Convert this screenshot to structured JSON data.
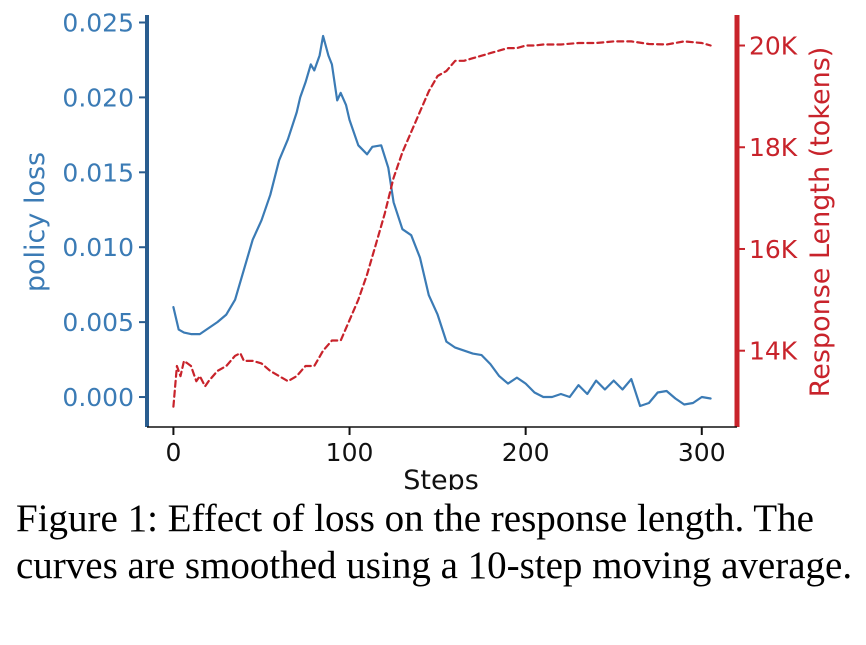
{
  "figure": {
    "caption": "Figure 1: Effect of loss on the response length. The curves are smoothed using a 10-step moving average."
  },
  "colors": {
    "policy_loss": "#3b7bb5",
    "response_length": "#c8232b",
    "text": "#111111"
  },
  "chart_data": {
    "type": "line",
    "title": "",
    "xlabel": "Steps",
    "ylabel_left": "policy loss",
    "ylabel_right": "Response Length (tokens)",
    "xlim": [
      -15,
      320
    ],
    "ylim_left": [
      -0.002,
      0.0255
    ],
    "ylim_right": [
      12500,
      20600
    ],
    "x_ticks": [
      0,
      100,
      200,
      300
    ],
    "x_tick_labels": [
      "0",
      "100",
      "200",
      "300"
    ],
    "y_left_ticks": [
      0.0,
      0.005,
      0.01,
      0.015,
      0.02,
      0.025
    ],
    "y_left_tick_labels": [
      "0.000",
      "0.005",
      "0.010",
      "0.015",
      "0.020",
      "0.025"
    ],
    "y_right_ticks": [
      14000,
      16000,
      18000,
      20000
    ],
    "y_right_tick_labels": [
      "14K",
      "16K",
      "18K",
      "20K"
    ],
    "grid": false,
    "legend": "none",
    "series": [
      {
        "name": "policy loss",
        "axis": "left",
        "style": "solid",
        "x": [
          0,
          3,
          6,
          10,
          15,
          20,
          25,
          30,
          35,
          40,
          45,
          50,
          55,
          60,
          65,
          70,
          72,
          75,
          78,
          80,
          83,
          85,
          88,
          90,
          93,
          95,
          98,
          100,
          105,
          110,
          113,
          118,
          122,
          125,
          130,
          135,
          140,
          145,
          150,
          155,
          160,
          165,
          170,
          175,
          180,
          185,
          190,
          195,
          200,
          205,
          210,
          215,
          220,
          225,
          230,
          235,
          240,
          245,
          250,
          255,
          260,
          265,
          270,
          275,
          280,
          285,
          290,
          295,
          300,
          305
        ],
        "y": [
          0.006,
          0.0045,
          0.0043,
          0.0042,
          0.0042,
          0.0046,
          0.005,
          0.0055,
          0.0065,
          0.0085,
          0.0105,
          0.0118,
          0.0135,
          0.0158,
          0.0172,
          0.019,
          0.02,
          0.021,
          0.0222,
          0.0218,
          0.0228,
          0.0241,
          0.0228,
          0.0222,
          0.0198,
          0.0203,
          0.0195,
          0.0185,
          0.0168,
          0.0162,
          0.0167,
          0.0168,
          0.0153,
          0.013,
          0.0112,
          0.0108,
          0.0093,
          0.0068,
          0.0055,
          0.0037,
          0.0033,
          0.0031,
          0.0029,
          0.0028,
          0.0022,
          0.0014,
          0.0009,
          0.0013,
          0.0009,
          0.0003,
          0.0,
          0.0,
          0.0002,
          0.0,
          0.0008,
          0.0002,
          0.0011,
          0.0005,
          0.0011,
          0.0005,
          0.0012,
          -0.0006,
          -0.0004,
          0.0003,
          0.0004,
          -0.0001,
          -0.0005,
          -0.0004,
          0.0,
          -0.0001
        ]
      },
      {
        "name": "Response Length (tokens)",
        "axis": "right",
        "style": "dashed",
        "x": [
          0,
          2,
          4,
          6,
          8,
          10,
          13,
          15,
          18,
          20,
          25,
          30,
          35,
          38,
          40,
          45,
          50,
          55,
          60,
          65,
          70,
          75,
          80,
          85,
          90,
          95,
          100,
          105,
          110,
          115,
          120,
          125,
          130,
          135,
          140,
          145,
          150,
          155,
          160,
          165,
          170,
          175,
          180,
          185,
          190,
          195,
          200,
          205,
          210,
          220,
          230,
          240,
          250,
          260,
          270,
          280,
          290,
          300,
          305
        ],
        "y": [
          12900,
          13700,
          13500,
          13800,
          13750,
          13700,
          13400,
          13500,
          13300,
          13400,
          13600,
          13700,
          13900,
          13950,
          13800,
          13800,
          13750,
          13600,
          13500,
          13400,
          13500,
          13700,
          13700,
          14000,
          14200,
          14200,
          14600,
          15000,
          15500,
          16100,
          16700,
          17400,
          17900,
          18300,
          18700,
          19100,
          19400,
          19500,
          19700,
          19700,
          19750,
          19800,
          19850,
          19900,
          19950,
          19950,
          20000,
          20000,
          20020,
          20020,
          20050,
          20050,
          20080,
          20080,
          20030,
          20020,
          20080,
          20050,
          20000
        ]
      }
    ]
  }
}
